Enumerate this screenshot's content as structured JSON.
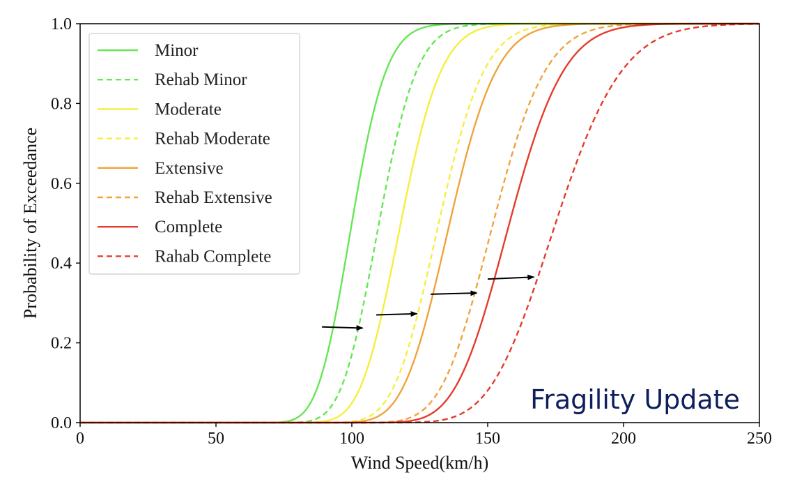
{
  "chart_data": {
    "type": "line",
    "title": "",
    "xlabel": "Wind Speed(km/h)",
    "ylabel": "Probability of Exceedance",
    "xlim": [
      0,
      250
    ],
    "ylim": [
      0,
      1.0
    ],
    "xticks": [
      0,
      50,
      100,
      150,
      200,
      250
    ],
    "xtick_labels": [
      "0",
      "50",
      "100",
      "150",
      "200",
      "250"
    ],
    "yticks": [
      0,
      0.2,
      0.4,
      0.6,
      0.8,
      1.0
    ],
    "ytick_labels": [
      "0.0",
      "0.2",
      "0.4",
      "0.6",
      "0.8",
      "1.0"
    ],
    "grid": false,
    "legend_position": "top-left",
    "annotation": "Fragility Update",
    "series": [
      {
        "name": "Minor",
        "color": "#66e655",
        "dash": false,
        "median": 100,
        "beta": 0.1
      },
      {
        "name": "Rehab Minor",
        "color": "#66e655",
        "dash": true,
        "median": 110,
        "beta": 0.1
      },
      {
        "name": "Moderate",
        "color": "#f7ee3c",
        "dash": false,
        "median": 118,
        "beta": 0.1
      },
      {
        "name": "Rehab Moderate",
        "color": "#f7ee3c",
        "dash": true,
        "median": 132,
        "beta": 0.1
      },
      {
        "name": "Extensive",
        "color": "#f0a33a",
        "dash": false,
        "median": 136,
        "beta": 0.1
      },
      {
        "name": "Rehab Extensive",
        "color": "#f0a33a",
        "dash": true,
        "median": 152,
        "beta": 0.1
      },
      {
        "name": "Complete",
        "color": "#e53b2c",
        "dash": false,
        "median": 158,
        "beta": 0.1
      },
      {
        "name": "Rahab Complete",
        "color": "#e53b2c",
        "dash": true,
        "median": 175,
        "beta": 0.11
      }
    ],
    "shift_arrows": [
      {
        "from": [
          89,
          0.24
        ],
        "to": [
          104,
          0.237
        ]
      },
      {
        "from": [
          109,
          0.27
        ],
        "to": [
          124,
          0.273
        ]
      },
      {
        "from": [
          129,
          0.322
        ],
        "to": [
          146,
          0.325
        ]
      },
      {
        "from": [
          150,
          0.36
        ],
        "to": [
          167,
          0.365
        ]
      }
    ]
  }
}
